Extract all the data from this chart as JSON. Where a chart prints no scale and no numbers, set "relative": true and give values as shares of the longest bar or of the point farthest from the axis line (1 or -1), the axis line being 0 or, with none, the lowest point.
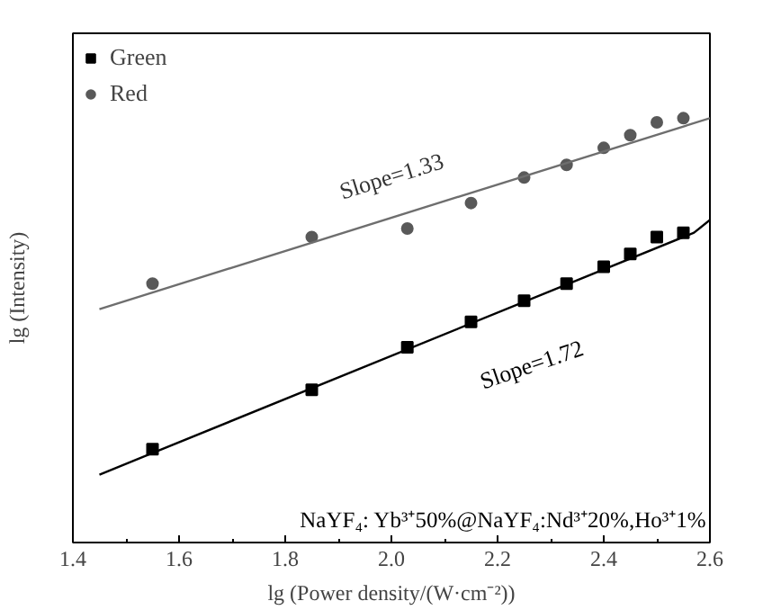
{
  "chart_data": {
    "type": "scatter",
    "relative": true,
    "xlabel": "lg (Power density/(W·cm⁻²))",
    "ylabel": "lg (Intensity)",
    "xlim": [
      1.4,
      2.6
    ],
    "xticks": [
      1.4,
      1.6,
      1.8,
      {
        "value": 2,
        "label": "2.0"
      },
      2.2,
      2.4,
      {
        "value": 2.6,
        "label": "2.6"
      }
    ],
    "legend": "top left",
    "grid": false,
    "series": [
      {
        "name": "Green",
        "marker": "square",
        "color": "#000000",
        "x": [
          1.55,
          1.85,
          2.03,
          2.15,
          2.25,
          2.33,
          2.4,
          2.45,
          2.5,
          2.55
        ],
        "values": [
          0.22,
          0.36,
          0.46,
          0.52,
          0.57,
          0.61,
          0.65,
          0.68,
          0.72,
          0.73
        ]
      },
      {
        "name": "Red",
        "marker": "circle",
        "color": "#595959",
        "x": [
          1.55,
          1.85,
          2.03,
          2.15,
          2.25,
          2.33,
          2.4,
          2.45,
          2.5,
          2.55
        ],
        "values": [
          0.61,
          0.72,
          0.74,
          0.8,
          0.86,
          0.89,
          0.93,
          0.96,
          0.99,
          1.0
        ]
      },
      {
        "type": "line",
        "color": "#000000",
        "x": [
          1.45,
          2.57,
          2.6
        ],
        "values": [
          0.16,
          0.73,
          0.76
        ]
      },
      {
        "type": "line",
        "color": "#6e6e6e",
        "x": [
          1.45,
          2.6
        ],
        "values": [
          0.55,
          1.0
        ]
      }
    ],
    "annotations": [
      "Slope=1.33",
      "Slope=1.72",
      "NaYF₄: Yb³⁺50%@NaYF₄:Nd³⁺20%,Ho³⁺1%"
    ]
  }
}
